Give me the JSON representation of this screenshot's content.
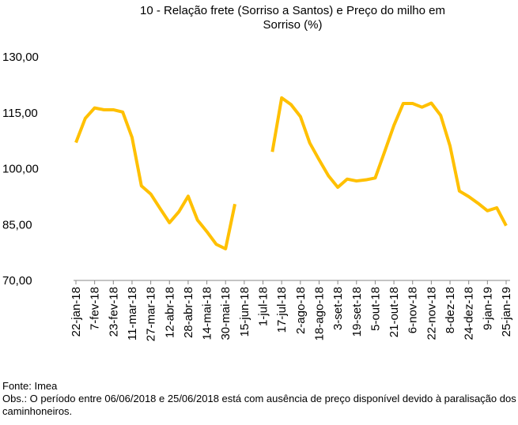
{
  "chart_data": {
    "type": "line",
    "title": "10 - Relação frete (Sorriso a Santos) e Preço do milho em Sorriso (%)",
    "categories": [
      "22-jan-18",
      null,
      "7-fev-18",
      null,
      "23-fev-18",
      null,
      "11-mar-18",
      null,
      "27-mar-18",
      null,
      "12-abr-18",
      null,
      "28-abr-18",
      null,
      "14-mai-18",
      null,
      "30-mai-18",
      null,
      "15-jun-18",
      null,
      "1-jul-18",
      null,
      "17-jul-18",
      null,
      "2-ago-18",
      null,
      "18-ago-18",
      null,
      "3-set-18",
      null,
      "19-set-18",
      null,
      "5-out-18",
      null,
      "21-out-18",
      null,
      "6-nov-18",
      null,
      "22-nov-18",
      null,
      "8-dez-18",
      null,
      "24-dez-18",
      null,
      "9-jan-19",
      null,
      "25-jan-19"
    ],
    "values": [
      107,
      113.5,
      116.3,
      115.8,
      115.8,
      115.2,
      108.4,
      95.4,
      93.2,
      89.3,
      85.5,
      88.4,
      92.6,
      86.2,
      83.1,
      79.7,
      78.5,
      90.5,
      null,
      null,
      null,
      104.5,
      119,
      117.2,
      114,
      106.9,
      102.4,
      98.1,
      95,
      97.2,
      96.7,
      97,
      97.5,
      104.5,
      111.6,
      117.5,
      117.5,
      116.5,
      117.6,
      114.3,
      106.1,
      94,
      92.5,
      90.7,
      88.7,
      89.5,
      84.7
    ],
    "color": "#FFC000",
    "ylim": [
      70,
      130
    ],
    "yticks": [
      {
        "value": 70,
        "label": "70,00"
      },
      {
        "value": 85,
        "label": "85,00"
      },
      {
        "value": 100,
        "label": "100,00"
      },
      {
        "value": 115,
        "label": "115,00"
      },
      {
        "value": 130,
        "label": "130,00"
      }
    ],
    "grid": false
  },
  "footer": {
    "source": "Fonte: Imea",
    "note": "Obs.: O período entre 06/06/2018 e 25/06/2018 está com ausência de preço disponível devido à paralisação dos caminhoneiros."
  }
}
